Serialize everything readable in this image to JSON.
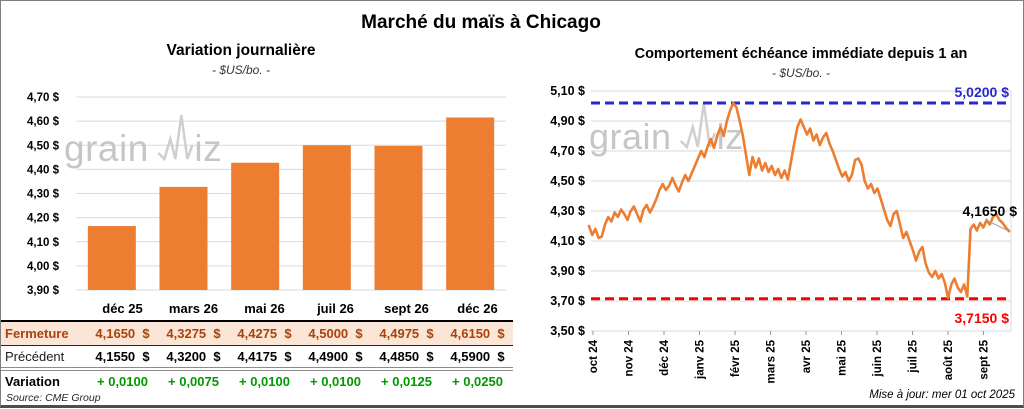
{
  "page": {
    "title": "Marché du maïs à Chicago",
    "source": "Source: CME Group",
    "updated": "Mise à jour: mer 01 oct 2025"
  },
  "watermark": {
    "left_part": "grain",
    "right_part": "iz"
  },
  "colors": {
    "orange": "#ED7D31",
    "blue": "#2828CF",
    "red": "#FF0000",
    "green": "#009900",
    "fermeture_text": "#AA430A",
    "fermeture_bg": "#FBE5D6",
    "grid": "#DADADA",
    "tick": "#999999",
    "leader": "#A6A6A6",
    "watermark": "#C6C6C6"
  },
  "chart_data": [
    {
      "type": "bar",
      "title": "Variation journalière",
      "subtitle": "- $US/bo. -",
      "categories": [
        "déc 25",
        "mars 26",
        "mai 26",
        "juil 26",
        "sept 26",
        "déc 26"
      ],
      "values": [
        4.165,
        4.3275,
        4.4275,
        4.5,
        4.4975,
        4.615
      ],
      "ylim": [
        3.9,
        4.7
      ],
      "ytick_step": 0.1,
      "grid": true,
      "legend": "none"
    },
    {
      "type": "line",
      "title": "Comportement échéance immédiate depuis 1 an",
      "subtitle": "- $US/bo. -",
      "x_labels": [
        "oct 24",
        "nov 24",
        "déc 24",
        "janv 25",
        "févr 25",
        "mars 25",
        "avr 25",
        "mai 25",
        "juin 25",
        "juil 25",
        "août 25",
        "sept 25"
      ],
      "values": [
        4.2,
        4.14,
        4.18,
        4.12,
        4.13,
        4.21,
        4.26,
        4.23,
        4.29,
        4.26,
        4.31,
        4.28,
        4.24,
        4.3,
        4.33,
        4.28,
        4.23,
        4.31,
        4.34,
        4.29,
        4.33,
        4.38,
        4.44,
        4.48,
        4.44,
        4.47,
        4.52,
        4.47,
        4.43,
        4.49,
        4.54,
        4.5,
        4.55,
        4.6,
        4.65,
        4.7,
        4.66,
        4.73,
        4.78,
        4.72,
        4.8,
        4.86,
        4.8,
        4.9,
        4.97,
        5.02,
        4.99,
        4.9,
        4.8,
        4.67,
        4.54,
        4.66,
        4.59,
        4.65,
        4.57,
        4.62,
        4.56,
        4.6,
        4.54,
        4.58,
        4.52,
        4.57,
        4.51,
        4.63,
        4.75,
        4.86,
        4.91,
        4.86,
        4.81,
        4.85,
        4.77,
        4.81,
        4.74,
        4.79,
        4.82,
        4.75,
        4.7,
        4.64,
        4.58,
        4.53,
        4.56,
        4.5,
        4.54,
        4.64,
        4.65,
        4.61,
        4.5,
        4.45,
        4.48,
        4.42,
        4.45,
        4.38,
        4.31,
        4.24,
        4.2,
        4.28,
        4.3,
        4.21,
        4.12,
        4.16,
        4.1,
        4.04,
        3.97,
        4.03,
        4.06,
        3.95,
        3.89,
        3.86,
        3.9,
        3.85,
        3.88,
        3.82,
        3.72,
        3.81,
        3.85,
        3.79,
        3.76,
        3.81,
        3.73,
        4.18,
        4.21,
        4.17,
        4.22,
        4.19,
        4.24,
        4.21,
        4.26,
        4.28,
        4.24,
        4.22,
        4.19,
        4.165
      ],
      "ylim": [
        3.5,
        5.1
      ],
      "ytick_step": 0.2,
      "grid": true,
      "legend": "none",
      "hlines": [
        {
          "value": 5.02,
          "label": "5,0200 $",
          "color_key": "blue"
        },
        {
          "value": 3.715,
          "label": "3,7150 $",
          "color_key": "red"
        }
      ],
      "last_value_label": "4,1650 $"
    }
  ],
  "table": {
    "rows": [
      {
        "label": "Fermeture",
        "style": "fermeture",
        "suffix": "$",
        "values": [
          "4,1650",
          "4,3275",
          "4,4275",
          "4,5000",
          "4,4975",
          "4,6150"
        ]
      },
      {
        "label": "Précédent",
        "style": "precedent",
        "suffix": "$",
        "values": [
          "4,1550",
          "4,3200",
          "4,4175",
          "4,4900",
          "4,4850",
          "4,5900"
        ]
      },
      {
        "label": "Variation",
        "style": "variation",
        "suffix": "",
        "values": [
          "+ 0,0100",
          "+ 0,0075",
          "+ 0,0100",
          "+ 0,0100",
          "+ 0,0125",
          "+ 0,0250"
        ]
      }
    ]
  }
}
